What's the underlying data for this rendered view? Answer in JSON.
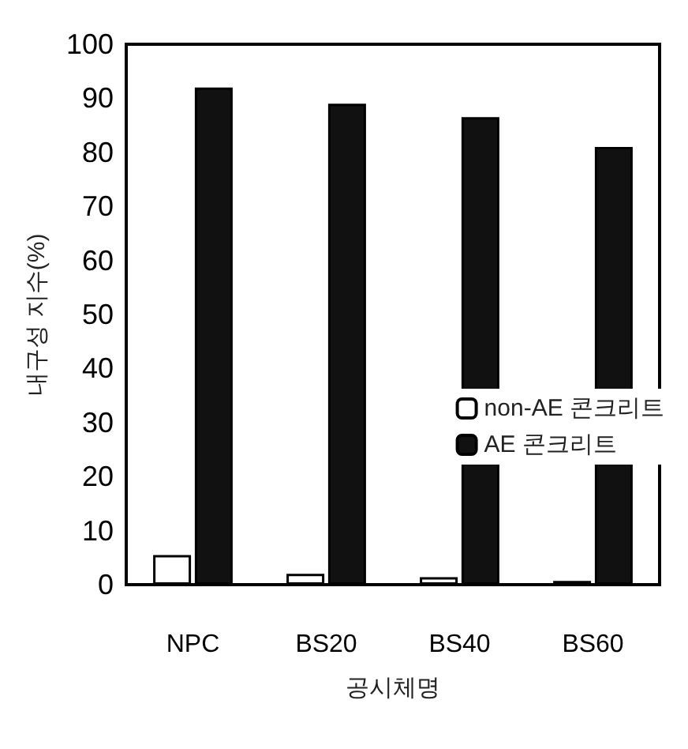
{
  "chart_data": {
    "type": "bar",
    "xlabel": "공시체명",
    "ylabel": "내구성 지수(%)",
    "categories": [
      "NPC",
      "BS20",
      "BS40",
      "BS60"
    ],
    "series": [
      {
        "name": "non-AE 콘크리트",
        "color": "#ffffff",
        "values": [
          5.5,
          2,
          1.4,
          0.7
        ]
      },
      {
        "name": "AE 콘크리트",
        "color": "#111111",
        "values": [
          92,
          89,
          86.5,
          81
        ]
      }
    ],
    "ylim": [
      0,
      100
    ],
    "yticks": [
      0,
      10,
      20,
      30,
      40,
      50,
      60,
      70,
      80,
      90,
      100
    ],
    "grid": false,
    "legend": "right"
  }
}
